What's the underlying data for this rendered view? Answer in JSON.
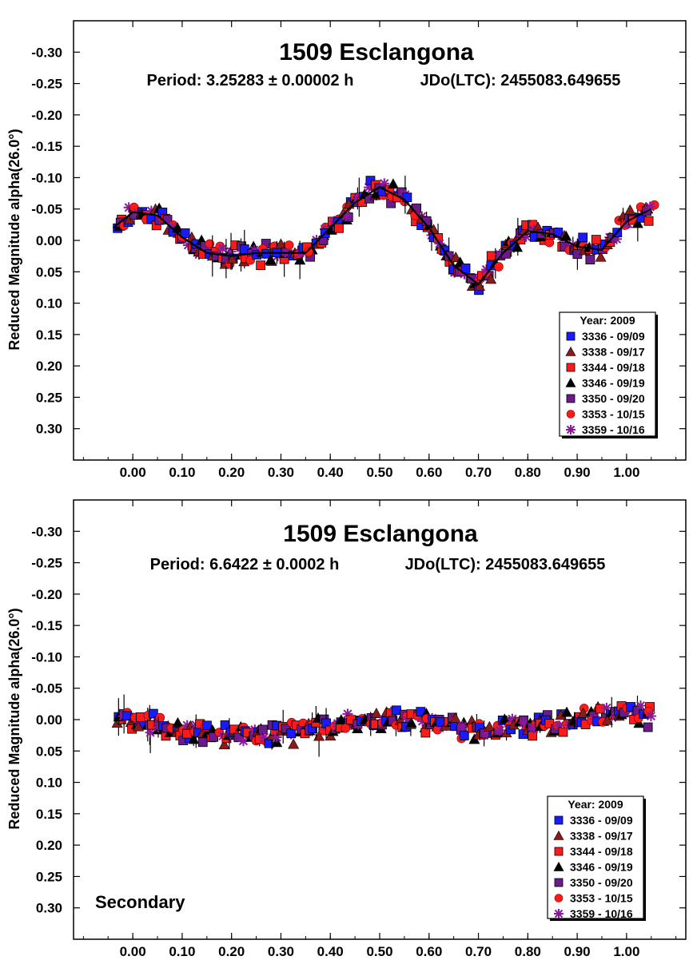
{
  "chart_data": [
    {
      "type": "scatter",
      "title": "1509 Esclangona",
      "subtitle_period": "Period: 3.25283 ± 0.00002 h",
      "subtitle_epoch": "JDo(LTC): 2455083.649655",
      "ylabel": "Reduced Magnitude alpha(26.0°)",
      "xlabel": "",
      "xlim": [
        -0.12,
        1.12
      ],
      "ylim": [
        -0.35,
        0.35
      ],
      "y_inverted": true,
      "x_ticks": [
        "0.00",
        "0.10",
        "0.20",
        "0.30",
        "0.40",
        "0.50",
        "0.60",
        "0.70",
        "0.80",
        "0.90",
        "1.00"
      ],
      "y_ticks": [
        "-0.30",
        "-0.25",
        "-0.20",
        "-0.15",
        "-0.10",
        "-0.05",
        "0.00",
        "0.05",
        "0.10",
        "0.15",
        "0.20",
        "0.25",
        "0.30"
      ],
      "grid": false,
      "legend_placement": "lower-right",
      "legend_title": "Year: 2009",
      "series": [
        {
          "name": "3336 - 09/09",
          "color": "#1a1aff",
          "marker": "square"
        },
        {
          "name": "3338 - 09/17",
          "color": "#8b1a1a",
          "marker": "triangle"
        },
        {
          "name": "3344 - 09/18",
          "color": "#ff1a1a",
          "marker": "square"
        },
        {
          "name": "3346 - 09/19",
          "color": "#000000",
          "marker": "triangle"
        },
        {
          "name": "3350 - 09/20",
          "color": "#6a1a8a",
          "marker": "square"
        },
        {
          "name": "3353 - 10/15",
          "color": "#ff1a1a",
          "marker": "circle"
        },
        {
          "name": "3359 - 10/16",
          "color": "#8a1a9a",
          "marker": "asterisk"
        }
      ],
      "fit_curve": {
        "x": [
          -0.04,
          0.0,
          0.05,
          0.1,
          0.15,
          0.2,
          0.25,
          0.3,
          0.35,
          0.4,
          0.45,
          0.5,
          0.55,
          0.6,
          0.65,
          0.7,
          0.75,
          0.8,
          0.85,
          0.9,
          0.95,
          1.0,
          1.05
        ],
        "y": [
          -0.02,
          -0.045,
          -0.04,
          -0.005,
          0.02,
          0.025,
          0.02,
          0.02,
          0.02,
          -0.02,
          -0.06,
          -0.085,
          -0.065,
          -0.02,
          0.04,
          0.07,
          0.02,
          -0.015,
          -0.01,
          0.01,
          0.015,
          -0.03,
          -0.05
        ]
      },
      "noise_amplitude": 0.022,
      "points_per_series": 46
    },
    {
      "type": "scatter",
      "title": "1509 Esclangona",
      "subtitle_period": "Period: 6.6422 ± 0.0002 h",
      "subtitle_epoch": "JDo(LTC): 2455083.649655",
      "ylabel": "Reduced Magnitude alpha(26.0°)",
      "xlabel": "",
      "annotation": "Secondary",
      "xlim": [
        -0.12,
        1.12
      ],
      "ylim": [
        -0.35,
        0.35
      ],
      "y_inverted": true,
      "x_ticks": [
        "0.00",
        "0.10",
        "0.20",
        "0.30",
        "0.40",
        "0.50",
        "0.60",
        "0.70",
        "0.80",
        "0.90",
        "1.00"
      ],
      "y_ticks": [
        "-0.30",
        "-0.25",
        "-0.20",
        "-0.15",
        "-0.10",
        "-0.05",
        "0.00",
        "0.05",
        "0.10",
        "0.15",
        "0.20",
        "0.25",
        "0.30"
      ],
      "grid": false,
      "legend_placement": "lower-right",
      "legend_title": "Year: 2009",
      "series": [
        {
          "name": "3336 - 09/09",
          "color": "#1a1aff",
          "marker": "square"
        },
        {
          "name": "3338 - 09/17",
          "color": "#8b1a1a",
          "marker": "triangle"
        },
        {
          "name": "3344 - 09/18",
          "color": "#ff1a1a",
          "marker": "square"
        },
        {
          "name": "3346 - 09/19",
          "color": "#000000",
          "marker": "triangle"
        },
        {
          "name": "3350 - 09/20",
          "color": "#6a1a8a",
          "marker": "square"
        },
        {
          "name": "3353 - 10/15",
          "color": "#ff1a1a",
          "marker": "circle"
        },
        {
          "name": "3359 - 10/16",
          "color": "#8a1a9a",
          "marker": "asterisk"
        }
      ],
      "fit_curve": {
        "x": [
          -0.05,
          0.0,
          0.1,
          0.2,
          0.3,
          0.4,
          0.5,
          0.6,
          0.7,
          0.8,
          0.9,
          1.0,
          1.05
        ],
        "y": [
          -0.01,
          0.0,
          0.02,
          0.025,
          0.02,
          0.01,
          -0.005,
          0.0,
          0.015,
          0.01,
          0.0,
          -0.01,
          -0.005
        ]
      },
      "noise_amplitude": 0.025,
      "points_per_series": 46
    }
  ]
}
